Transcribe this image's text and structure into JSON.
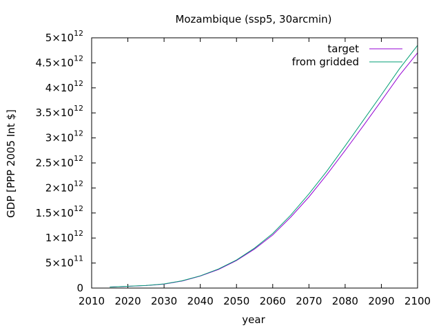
{
  "chart_data": {
    "type": "line",
    "title": "Mozambique (ssp5, 30arcmin)",
    "xlabel": "year",
    "ylabel": "GDP [PPP 2005 Int $]",
    "xlim": [
      2010,
      2100
    ],
    "ylim": [
      0,
      5000000000000
    ],
    "x_ticks": [
      2010,
      2020,
      2030,
      2040,
      2050,
      2060,
      2070,
      2080,
      2090,
      2100
    ],
    "x_tick_labels": [
      "2010",
      "2020",
      "2030",
      "2040",
      "2050",
      "2060",
      "2070",
      "2080",
      "2090",
      "2100"
    ],
    "y_ticks": [
      {
        "value": 0,
        "mant": "0",
        "exp": ""
      },
      {
        "value": 500000000000,
        "mant": "5×10",
        "exp": "11"
      },
      {
        "value": 1000000000000,
        "mant": "1×10",
        "exp": "12"
      },
      {
        "value": 1500000000000,
        "mant": "1.5×10",
        "exp": "12"
      },
      {
        "value": 2000000000000,
        "mant": "2×10",
        "exp": "12"
      },
      {
        "value": 2500000000000,
        "mant": "2.5×10",
        "exp": "12"
      },
      {
        "value": 3000000000000,
        "mant": "3×10",
        "exp": "12"
      },
      {
        "value": 3500000000000,
        "mant": "3.5×10",
        "exp": "12"
      },
      {
        "value": 4000000000000,
        "mant": "4×10",
        "exp": "12"
      },
      {
        "value": 4500000000000,
        "mant": "4.5×10",
        "exp": "12"
      },
      {
        "value": 5000000000000,
        "mant": "5×10",
        "exp": "12"
      }
    ],
    "grid": false,
    "legend_position": "top-right",
    "x": [
      2015,
      2020,
      2025,
      2030,
      2035,
      2040,
      2045,
      2050,
      2055,
      2060,
      2065,
      2070,
      2075,
      2080,
      2085,
      2090,
      2095,
      2100
    ],
    "series": [
      {
        "name": "target",
        "color": "#9400d3",
        "values": [
          20000000000.0,
          35000000000.0,
          50000000000.0,
          80000000000.0,
          140000000000.0,
          240000000000.0,
          370000000000.0,
          550000000000.0,
          780000000000.0,
          1060000000000.0,
          1420000000000.0,
          1820000000000.0,
          2270000000000.0,
          2750000000000.0,
          3240000000000.0,
          3740000000000.0,
          4250000000000.0,
          4700000000000.0
        ]
      },
      {
        "name": "from gridded",
        "color": "#009e73",
        "values": [
          20000000000.0,
          36000000000.0,
          51000000000.0,
          82000000000.0,
          145000000000.0,
          245000000000.0,
          380000000000.0,
          560000000000.0,
          800000000000.0,
          1090000000000.0,
          1460000000000.0,
          1880000000000.0,
          2340000000000.0,
          2840000000000.0,
          3350000000000.0,
          3860000000000.0,
          4380000000000.0,
          4850000000000.0
        ]
      }
    ]
  }
}
